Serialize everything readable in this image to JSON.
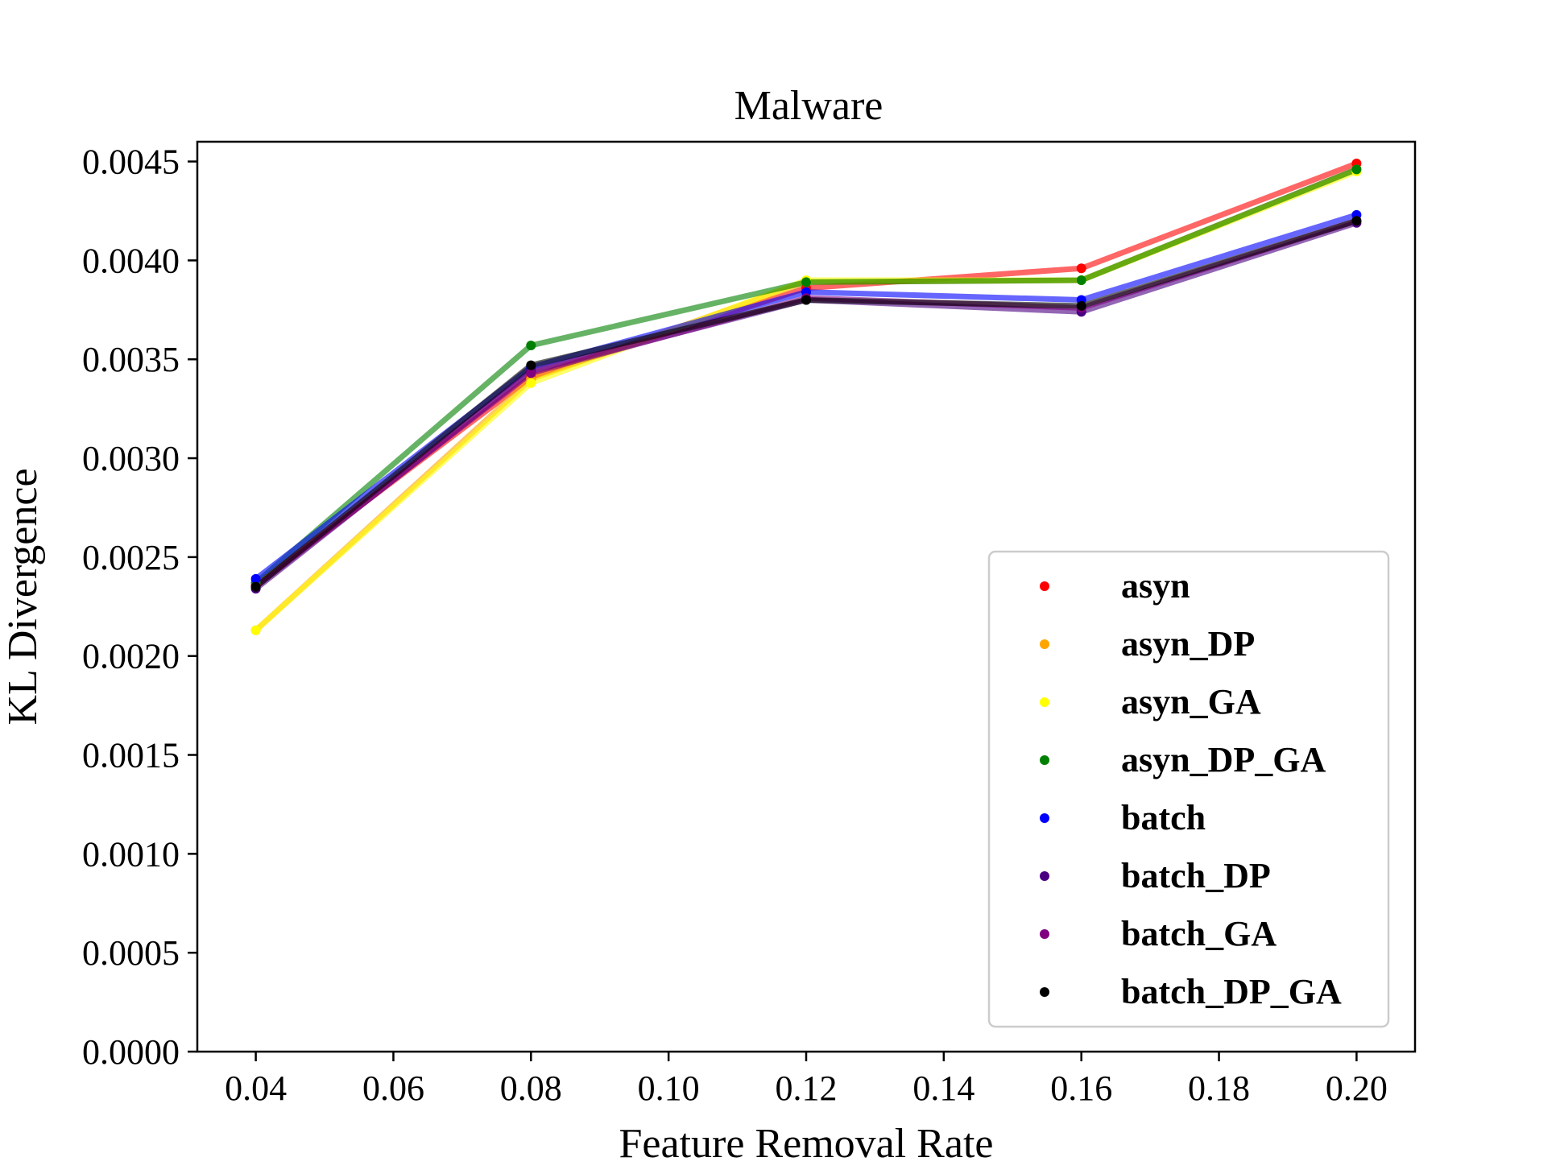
{
  "chart_data": {
    "type": "line",
    "title": "Malware",
    "xlabel": "Feature Removal Rate",
    "ylabel": "KL Divergence",
    "xlim": [
      0.0315,
      0.2085
    ],
    "ylim": [
      0.0,
      0.0046
    ],
    "x_ticks": [
      0.04,
      0.06,
      0.08,
      0.1,
      0.12,
      0.14,
      0.16,
      0.18,
      0.2
    ],
    "x_tick_labels": [
      "0.04",
      "0.06",
      "0.08",
      "0.10",
      "0.12",
      "0.14",
      "0.16",
      "0.18",
      "0.20"
    ],
    "y_ticks": [
      0.0,
      0.0005,
      0.001,
      0.0015,
      0.002,
      0.0025,
      0.003,
      0.0035,
      0.004,
      0.0045
    ],
    "y_tick_labels": [
      "0.0000",
      "0.0005",
      "0.0010",
      "0.0015",
      "0.0020",
      "0.0025",
      "0.0030",
      "0.0035",
      "0.0040",
      "0.0045"
    ],
    "x": [
      0.04,
      0.08,
      0.12,
      0.16,
      0.2
    ],
    "legend_position": "lower-right",
    "grid": false,
    "series": [
      {
        "name": "asyn",
        "color": "#ff0000",
        "values": [
          0.00236,
          0.00341,
          0.00386,
          0.00396,
          0.00449
        ]
      },
      {
        "name": "asyn_DP",
        "color": "#ffa500",
        "values": [
          0.00213,
          0.0034,
          0.00389,
          0.0039,
          0.00446
        ]
      },
      {
        "name": "asyn_GA",
        "color": "#ffff00",
        "values": [
          0.00213,
          0.00338,
          0.0039,
          0.0039,
          0.00445
        ]
      },
      {
        "name": "asyn_DP_GA",
        "color": "#008000",
        "values": [
          0.00237,
          0.00357,
          0.00389,
          0.0039,
          0.00446
        ]
      },
      {
        "name": "batch",
        "color": "#0000ff",
        "values": [
          0.00239,
          0.00346,
          0.00384,
          0.0038,
          0.00423
        ]
      },
      {
        "name": "batch_DP",
        "color": "#4b0082",
        "values": [
          0.00234,
          0.00344,
          0.0038,
          0.00374,
          0.00419
        ]
      },
      {
        "name": "batch_GA",
        "color": "#800080",
        "values": [
          0.00235,
          0.00343,
          0.00381,
          0.00376,
          0.0042
        ]
      },
      {
        "name": "batch_DP_GA",
        "color": "#000000",
        "values": [
          0.00235,
          0.00347,
          0.0038,
          0.00377,
          0.0042
        ]
      }
    ]
  }
}
